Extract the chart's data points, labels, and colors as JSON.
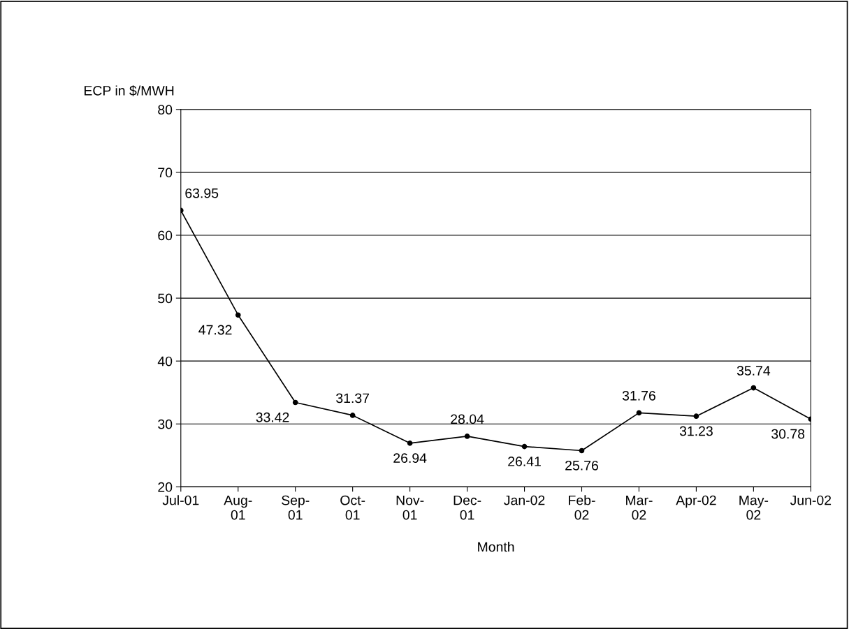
{
  "chart_data": {
    "type": "line",
    "ylabel": "ECP in $/MWH",
    "xlabel": "Month",
    "categories": [
      "Jul-01",
      "Aug-\n01",
      "Sep-\n01",
      "Oct-\n01",
      "Nov-\n01",
      "Dec-\n01",
      "Jan-02",
      "Feb-\n02",
      "Mar-\n02",
      "Apr-02",
      "May-\n02",
      "Jun-02"
    ],
    "series": [
      {
        "color": "#000000",
        "values": [
          63.95,
          47.32,
          33.42,
          31.37,
          26.94,
          28.04,
          26.41,
          25.76,
          31.76,
          31.23,
          35.74,
          30.78
        ]
      }
    ],
    "ylim": [
      20,
      80
    ],
    "yticks": [
      20,
      30,
      40,
      50,
      60,
      70,
      80
    ],
    "grid": "y",
    "legend": false,
    "marker": "circle",
    "line_style": "solid",
    "data_labels": true
  }
}
